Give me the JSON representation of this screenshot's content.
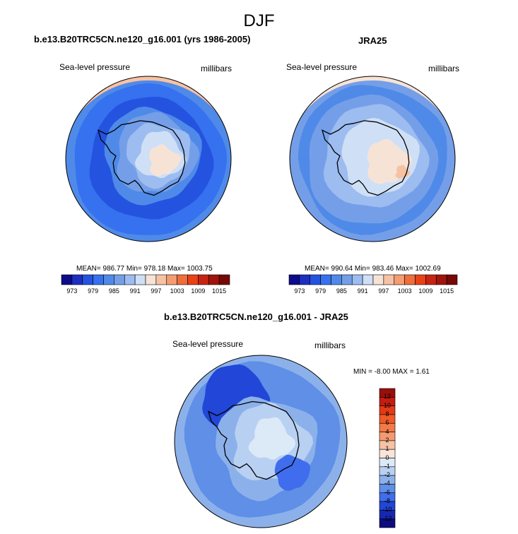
{
  "figure": {
    "main_title": "DJF"
  },
  "chart_data": [
    {
      "type": "heatmap",
      "projection": "south-polar-stereographic",
      "title": "b.e13.B20TRC5CN.ne120_g16.001 (yrs 1986-2005)",
      "left_label": "Sea-level pressure",
      "right_label": "millibars",
      "stats": {
        "text": "MEAN= 986.77  Min= 978.18  Max= 1003.75",
        "mean": 986.77,
        "min": 978.18,
        "max": 1003.75
      },
      "colorbar": {
        "orientation": "horizontal",
        "levels": [
          970,
          973,
          976,
          979,
          982,
          985,
          988,
          991,
          994,
          997,
          1000,
          1003,
          1006,
          1009,
          1012,
          1015,
          1018
        ],
        "tick_labels": [
          "973",
          "979",
          "985",
          "991",
          "997",
          "1003",
          "1009",
          "1015"
        ],
        "colors": [
          "#0c0c8a",
          "#1c2fc1",
          "#2453e0",
          "#3671f0",
          "#4f8ae8",
          "#749fe8",
          "#9dbcf0",
          "#cfe0f6",
          "#f7e3d6",
          "#f7c2a4",
          "#f59c72",
          "#f06e3c",
          "#e84216",
          "#c62412",
          "#a0140c",
          "#780807"
        ]
      }
    },
    {
      "type": "heatmap",
      "projection": "south-polar-stereographic",
      "title": "JRA25",
      "left_label": "Sea-level pressure",
      "right_label": "millibars",
      "stats": {
        "text": "MEAN= 990.64  Min= 983.46  Max= 1002.69",
        "mean": 990.64,
        "min": 983.46,
        "max": 1002.69
      },
      "colorbar": {
        "orientation": "horizontal",
        "levels": [
          970,
          973,
          976,
          979,
          982,
          985,
          988,
          991,
          994,
          997,
          1000,
          1003,
          1006,
          1009,
          1012,
          1015,
          1018
        ],
        "tick_labels": [
          "973",
          "979",
          "985",
          "991",
          "997",
          "1003",
          "1009",
          "1015"
        ],
        "colors": [
          "#0c0c8a",
          "#1c2fc1",
          "#2453e0",
          "#3671f0",
          "#4f8ae8",
          "#749fe8",
          "#9dbcf0",
          "#cfe0f6",
          "#f7e3d6",
          "#f7c2a4",
          "#f59c72",
          "#f06e3c",
          "#e84216",
          "#c62412",
          "#a0140c",
          "#780807"
        ]
      }
    },
    {
      "type": "heatmap",
      "projection": "south-polar-stereographic",
      "title": "b.e13.B20TRC5CN.ne120_g16.001 - JRA25",
      "left_label": "Sea-level pressure",
      "right_label": "millibars",
      "stats": {
        "text": "MIN =  -8.00 MAX =   1.61",
        "min": -8.0,
        "max": 1.61
      },
      "colorbar": {
        "orientation": "vertical",
        "levels": [
          -12,
          -10,
          -8,
          -6,
          -4,
          -2,
          -1,
          0,
          1,
          2,
          4,
          6,
          8,
          10,
          12
        ],
        "tick_labels": [
          "12",
          "10",
          "8",
          "6",
          "4",
          "2",
          "1",
          "0",
          "-1",
          "-2",
          "-4",
          "-6",
          "-8",
          "-10",
          "-12"
        ],
        "colors_top_to_bottom": [
          "#9a0f0b",
          "#c41d12",
          "#e43a17",
          "#f05a26",
          "#f27a48",
          "#f49a70",
          "#f6c2a4",
          "#f8e4d8",
          "#dce9f7",
          "#b8d0f2",
          "#8cb1ea",
          "#5f8fe6",
          "#3f6ded",
          "#2146d8",
          "#1628b0",
          "#0c0c80"
        ]
      }
    }
  ]
}
